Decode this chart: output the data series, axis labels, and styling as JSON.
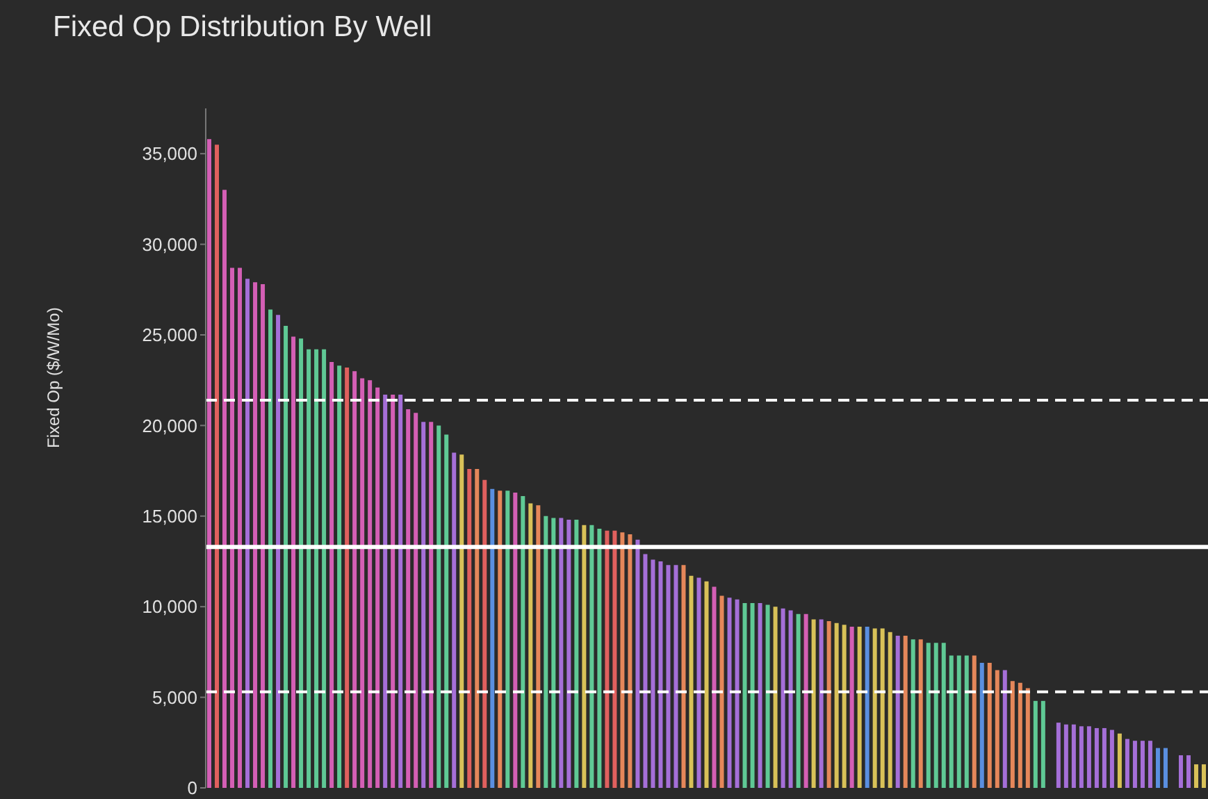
{
  "chart_data": {
    "type": "bar",
    "title": "Fixed Op Distribution By Well",
    "ylabel": "Fixed Op ($/W/Mo)",
    "categories": [
      null,
      null,
      null,
      null,
      null,
      null,
      null,
      null,
      null,
      null,
      null,
      null,
      null,
      null,
      null,
      null,
      null,
      null,
      null,
      null,
      null,
      null,
      null,
      null,
      null,
      null,
      null,
      null,
      null,
      null,
      null,
      null,
      null,
      null,
      null,
      null,
      null,
      null,
      null,
      null,
      null,
      null,
      null,
      null,
      null,
      null,
      null,
      null,
      null,
      null,
      null,
      null,
      null,
      null,
      null,
      null,
      null,
      null,
      null,
      null,
      null,
      null,
      null,
      null,
      null,
      null,
      null,
      null,
      null,
      null,
      null,
      null,
      null,
      null,
      null,
      null,
      null,
      null,
      null,
      null,
      null,
      null,
      null,
      null,
      null,
      null,
      null,
      null,
      null,
      null,
      null,
      null,
      null,
      null,
      null,
      null,
      null,
      null,
      null,
      null,
      null,
      null,
      null,
      null,
      null,
      null,
      null,
      null,
      null,
      null,
      null,
      null,
      null,
      null,
      null,
      null,
      null,
      null,
      null,
      null,
      null,
      null,
      null,
      null,
      null,
      null,
      null,
      null,
      null,
      null,
      null
    ],
    "values": [
      35800,
      35500,
      33000,
      28700,
      28700,
      28100,
      27900,
      27800,
      26400,
      26100,
      25500,
      24900,
      24800,
      24200,
      24200,
      24200,
      23500,
      23300,
      23200,
      23000,
      22600,
      22500,
      22100,
      21700,
      21700,
      21700,
      20900,
      20700,
      20200,
      20200,
      20000,
      19500,
      18500,
      18400,
      17600,
      17600,
      17000,
      16500,
      16400,
      16400,
      16300,
      16100,
      15700,
      15600,
      15000,
      14900,
      14900,
      14800,
      14800,
      14500,
      14500,
      14300,
      14200,
      14200,
      14100,
      14000,
      13700,
      12900,
      12600,
      12500,
      12300,
      12300,
      12300,
      11700,
      11600,
      11400,
      11100,
      10600,
      10500,
      10400,
      10200,
      10200,
      10200,
      10100,
      10000,
      9900,
      9800,
      9600,
      9600,
      9300,
      9300,
      9200,
      9100,
      9000,
      8900,
      8900,
      8900,
      8800,
      8800,
      8600,
      8400,
      8400,
      8200,
      8200,
      8000,
      8000,
      8000,
      7300,
      7300,
      7300,
      7300,
      6900,
      6900,
      6500,
      6500,
      5900,
      5800,
      5500,
      4800,
      4800,
      null,
      3600,
      3500,
      3500,
      3400,
      3400,
      3300,
      3300,
      3200,
      3000,
      2700,
      2600,
      2600,
      2600,
      2200,
      2200,
      null,
      1800,
      1800,
      1300,
      1300
    ],
    "colors": [
      "#d45fb5",
      "#e0605e",
      "#d45fb5",
      "#d45fb5",
      "#d45fb5",
      "#a56fd8",
      "#d45fb5",
      "#d45fb5",
      "#5fc995",
      "#a56fd8",
      "#5fc995",
      "#d45fb5",
      "#5fc995",
      "#5fc995",
      "#5fc995",
      "#5fc995",
      "#d45fb5",
      "#5fc995",
      "#e0605e",
      "#d45fb5",
      "#d45fb5",
      "#d45fb5",
      "#d45fb5",
      "#a56fd8",
      "#d45fb5",
      "#a56fd8",
      "#d45fb5",
      "#d45fb5",
      "#a56fd8",
      "#d45fb5",
      "#5fc995",
      "#5fc995",
      "#a56fd8",
      "#d8c158",
      "#e0605e",
      "#e5875a",
      "#e0605e",
      "#5a8fe0",
      "#e5875a",
      "#5fc995",
      "#d45fb5",
      "#5fc995",
      "#d8c158",
      "#e5875a",
      "#5fc995",
      "#5fc995",
      "#a56fd8",
      "#a56fd8",
      "#5fc995",
      "#d8c158",
      "#5fc995",
      "#5fc995",
      "#e0605e",
      "#e0605e",
      "#e5875a",
      "#e5875a",
      "#a56fd8",
      "#a56fd8",
      "#a56fd8",
      "#a56fd8",
      "#a56fd8",
      "#a56fd8",
      "#e5875a",
      "#d8c158",
      "#a56fd8",
      "#d8c158",
      "#d45fb5",
      "#e5875a",
      "#a56fd8",
      "#a56fd8",
      "#5fc995",
      "#5fc995",
      "#a56fd8",
      "#5fc995",
      "#d8c158",
      "#a56fd8",
      "#a56fd8",
      "#5fc995",
      "#d45fb5",
      "#d8c158",
      "#a56fd8",
      "#e5875a",
      "#d8c158",
      "#d8c158",
      "#d45fb5",
      "#d8c158",
      "#5a8fe0",
      "#d8c158",
      "#d8c158",
      "#d8c158",
      "#a56fd8",
      "#e5875a",
      "#5fc995",
      "#e5875a",
      "#5fc995",
      "#5fc995",
      "#5fc995",
      "#5fc995",
      "#5fc995",
      "#5fc995",
      "#e5875a",
      "#5a8fe0",
      "#e5875a",
      "#e5875a",
      "#a56fd8",
      "#e5875a",
      "#e5875a",
      "#e5875a",
      "#5fc995",
      "#5fc995",
      "#a56fd8",
      "#a56fd8",
      "#a56fd8",
      "#a56fd8",
      "#a56fd8",
      "#a56fd8",
      "#a56fd8",
      "#a56fd8",
      "#a56fd8",
      "#d8c158",
      "#a56fd8",
      "#a56fd8",
      "#a56fd8",
      "#a56fd8",
      "#5a8fe0",
      "#5a8fe0",
      "#a56fd8",
      "#a56fd8",
      "#a56fd8",
      "#d8c158",
      "#d8c158"
    ],
    "ylim": [
      0,
      37500
    ],
    "yticks": [
      0,
      {
        "value": 5000,
        "label": "5,000"
      },
      {
        "value": 10000,
        "label": "10,000"
      },
      {
        "value": 15000,
        "label": "15,000"
      },
      {
        "value": 20000,
        "label": "20,000"
      },
      {
        "value": 25000,
        "label": "25,000"
      },
      {
        "value": 30000,
        "label": "30,000"
      },
      {
        "value": 35000,
        "label": "35,000"
      }
    ],
    "grid": false,
    "legend": false,
    "tick_labels": "y",
    "ref_lines": [
      {
        "axis": "y",
        "value": 21400,
        "color": "#ffffff",
        "line_style": "dashed"
      },
      {
        "axis": "y",
        "value": 13300,
        "color": "#ffffff",
        "line_style": "solid"
      },
      {
        "axis": "y",
        "value": 5300,
        "color": "#ffffff",
        "line_style": "dashed"
      }
    ]
  }
}
